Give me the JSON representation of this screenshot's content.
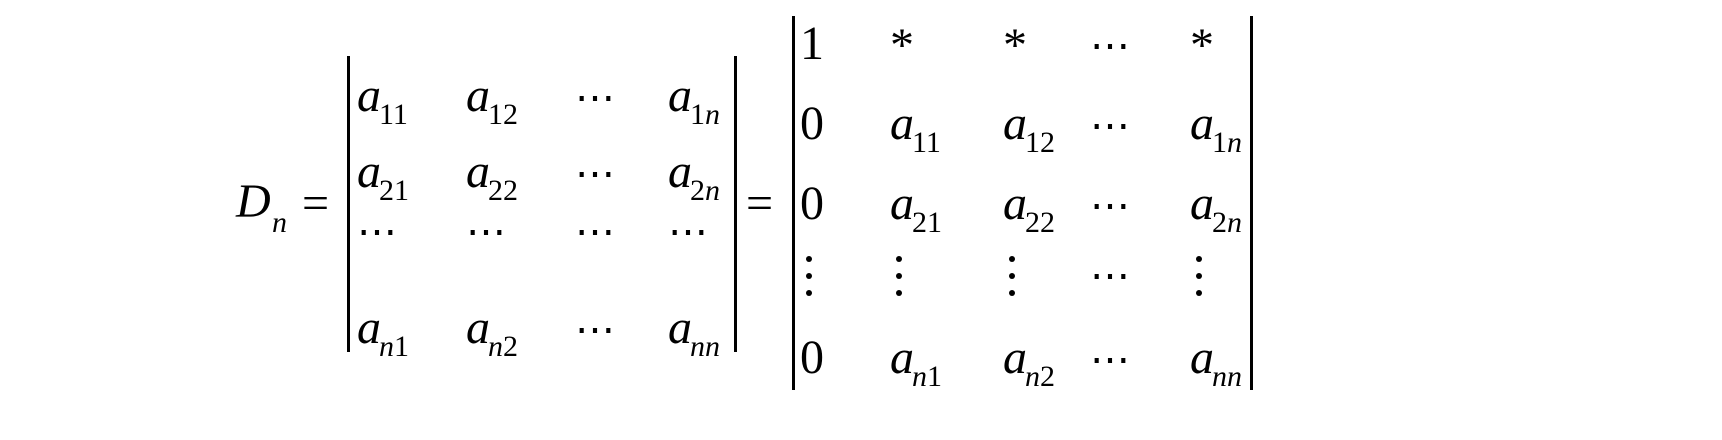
{
  "lhs": {
    "symbol": "D",
    "sub": "n"
  },
  "equals": "=",
  "ellipsis": "⋯",
  "star": "*",
  "left_det": [
    [
      {
        "b": "a",
        "s": "11"
      },
      {
        "b": "a",
        "s": "12"
      },
      {
        "t": "⋯"
      },
      {
        "b": "a",
        "s": "1n"
      }
    ],
    [
      {
        "b": "a",
        "s": "21"
      },
      {
        "b": "a",
        "s": "22"
      },
      {
        "t": "⋯"
      },
      {
        "b": "a",
        "s": "2n"
      }
    ],
    [
      {
        "t": "⋯"
      },
      {
        "t": "⋯"
      },
      {
        "t": "⋯"
      },
      {
        "t": "⋯"
      }
    ],
    [
      {
        "b": "a",
        "s": "n1"
      },
      {
        "b": "a",
        "s": "n2"
      },
      {
        "t": "⋯"
      },
      {
        "b": "a",
        "s": "nn"
      }
    ]
  ],
  "right_det": [
    [
      {
        "t": "1"
      },
      {
        "t": "*"
      },
      {
        "t": "*"
      },
      {
        "t": "⋯"
      },
      {
        "t": "*"
      }
    ],
    [
      {
        "t": "0"
      },
      {
        "b": "a",
        "s": "11"
      },
      {
        "b": "a",
        "s": "12"
      },
      {
        "t": "⋯"
      },
      {
        "b": "a",
        "s": "1n"
      }
    ],
    [
      {
        "t": "0"
      },
      {
        "b": "a",
        "s": "21"
      },
      {
        "b": "a",
        "s": "22"
      },
      {
        "t": "⋯"
      },
      {
        "b": "a",
        "s": "2n"
      }
    ],
    [
      {
        "v": "⋮"
      },
      {
        "v": "⋮"
      },
      {
        "v": "⋮"
      },
      {
        "t": "⋯"
      },
      {
        "v": "⋮"
      }
    ],
    [
      {
        "t": "0"
      },
      {
        "b": "a",
        "s": "n1"
      },
      {
        "b": "a",
        "s": "n2"
      },
      {
        "t": "⋯"
      },
      {
        "b": "a",
        "s": "nn"
      }
    ]
  ]
}
